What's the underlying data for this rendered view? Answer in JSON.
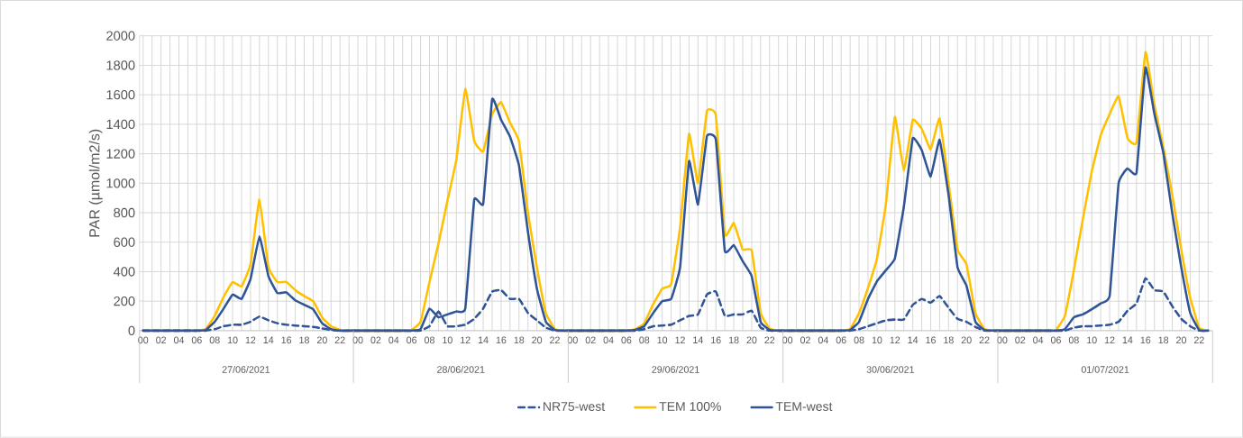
{
  "chart_data": {
    "type": "line",
    "ylabel": "PAR (µmol/m2/s)",
    "ylim": [
      0,
      2000
    ],
    "yticks": [
      0,
      200,
      400,
      600,
      800,
      1000,
      1200,
      1400,
      1600,
      1800,
      2000
    ],
    "grid": true,
    "legend": "bottom",
    "categories": [
      "00",
      null,
      "02",
      null,
      "04",
      null,
      "06",
      null,
      "08",
      null,
      "10",
      null,
      "12",
      null,
      "14",
      null,
      "16",
      null,
      "18",
      null,
      "20",
      null,
      "22",
      null,
      "00",
      null,
      "02",
      null,
      "04",
      null,
      "06",
      null,
      "08",
      null,
      "10",
      null,
      "12",
      null,
      "14",
      null,
      "16",
      null,
      "18",
      null,
      "20",
      null,
      "22",
      null,
      "00",
      null,
      "02",
      null,
      "04",
      null,
      "06",
      null,
      "08",
      null,
      "10",
      null,
      "12",
      null,
      "14",
      null,
      "16",
      null,
      "18",
      null,
      "20",
      null,
      "22",
      null,
      "00",
      null,
      "02",
      null,
      "04",
      null,
      "06",
      null,
      "08",
      null,
      "10",
      null,
      "12",
      null,
      "14",
      null,
      "16",
      null,
      "18",
      null,
      "20",
      null,
      "22",
      null,
      "00",
      null,
      "02",
      null,
      "04",
      null,
      "06",
      null,
      "08",
      null,
      "10",
      null,
      "12",
      null,
      "14",
      null,
      "16",
      null,
      "18",
      null,
      "20",
      null,
      "22",
      null
    ],
    "annotations": [
      "27/06/2021",
      "28/06/2021",
      "29/06/2021",
      "30/06/2021",
      "01/07/2021"
    ],
    "series": [
      {
        "name": "NR75-west",
        "color": "#2f5597",
        "line_style": "dashed",
        "values": [
          0,
          0,
          0,
          0,
          0,
          0,
          0,
          0,
          10,
          30,
          40,
          40,
          60,
          95,
          70,
          50,
          40,
          35,
          30,
          25,
          15,
          5,
          0,
          0,
          0,
          0,
          0,
          0,
          0,
          0,
          0,
          0,
          30,
          130,
          30,
          30,
          40,
          80,
          150,
          265,
          275,
          215,
          215,
          120,
          70,
          20,
          0,
          0,
          0,
          0,
          0,
          0,
          0,
          0,
          0,
          0,
          10,
          30,
          35,
          40,
          70,
          100,
          110,
          245,
          265,
          100,
          110,
          110,
          135,
          20,
          0,
          0,
          0,
          0,
          0,
          0,
          0,
          0,
          0,
          0,
          10,
          30,
          50,
          70,
          75,
          75,
          175,
          215,
          190,
          235,
          155,
          80,
          60,
          25,
          0,
          0,
          0,
          0,
          0,
          0,
          0,
          0,
          0,
          0,
          20,
          30,
          30,
          35,
          40,
          60,
          135,
          185,
          355,
          275,
          265,
          165,
          80,
          30,
          0,
          0
        ]
      },
      {
        "name": "TEM 100%",
        "color": "#ffc000",
        "line_style": "solid",
        "values": [
          null,
          null,
          null,
          null,
          null,
          null,
          0,
          10,
          100,
          230,
          330,
          300,
          450,
          890,
          430,
          330,
          330,
          275,
          235,
          200,
          90,
          30,
          5,
          0,
          0,
          0,
          0,
          0,
          0,
          0,
          5,
          60,
          330,
          590,
          880,
          1160,
          1640,
          1285,
          1215,
          1470,
          1550,
          1410,
          1285,
          800,
          430,
          120,
          10,
          0,
          0,
          0,
          0,
          0,
          0,
          0,
          0,
          10,
          50,
          180,
          285,
          315,
          700,
          1335,
          1000,
          1490,
          1460,
          650,
          730,
          550,
          545,
          120,
          15,
          0,
          0,
          0,
          0,
          0,
          0,
          0,
          0,
          10,
          120,
          290,
          490,
          860,
          1450,
          1085,
          1430,
          1370,
          1230,
          1440,
          1000,
          550,
          450,
          120,
          10,
          0,
          0,
          0,
          0,
          0,
          0,
          0,
          5,
          100,
          410,
          755,
          1080,
          1325,
          1470,
          1590,
          1305,
          1275,
          1890,
          1530,
          1245,
          920,
          550,
          225,
          20,
          0
        ]
      },
      {
        "name": "TEM-west",
        "color": "#2f5597",
        "line_style": "solid",
        "values": [
          0,
          0,
          0,
          0,
          0,
          0,
          0,
          5,
          60,
          150,
          245,
          215,
          350,
          640,
          370,
          255,
          260,
          205,
          175,
          145,
          50,
          10,
          0,
          0,
          0,
          0,
          0,
          0,
          0,
          0,
          0,
          10,
          150,
          90,
          110,
          130,
          150,
          890,
          860,
          1570,
          1430,
          1315,
          1120,
          670,
          285,
          60,
          5,
          0,
          0,
          0,
          0,
          0,
          0,
          0,
          0,
          5,
          30,
          120,
          200,
          215,
          430,
          1150,
          855,
          1320,
          1295,
          540,
          580,
          470,
          370,
          60,
          5,
          0,
          0,
          0,
          0,
          0,
          0,
          0,
          0,
          5,
          60,
          215,
          335,
          410,
          490,
          840,
          1305,
          1225,
          1045,
          1295,
          920,
          430,
          305,
          60,
          5,
          0,
          0,
          0,
          0,
          0,
          0,
          0,
          0,
          10,
          90,
          110,
          145,
          185,
          235,
          1000,
          1100,
          1070,
          1785,
          1470,
          1205,
          795,
          430,
          120,
          5,
          0
        ]
      }
    ]
  }
}
